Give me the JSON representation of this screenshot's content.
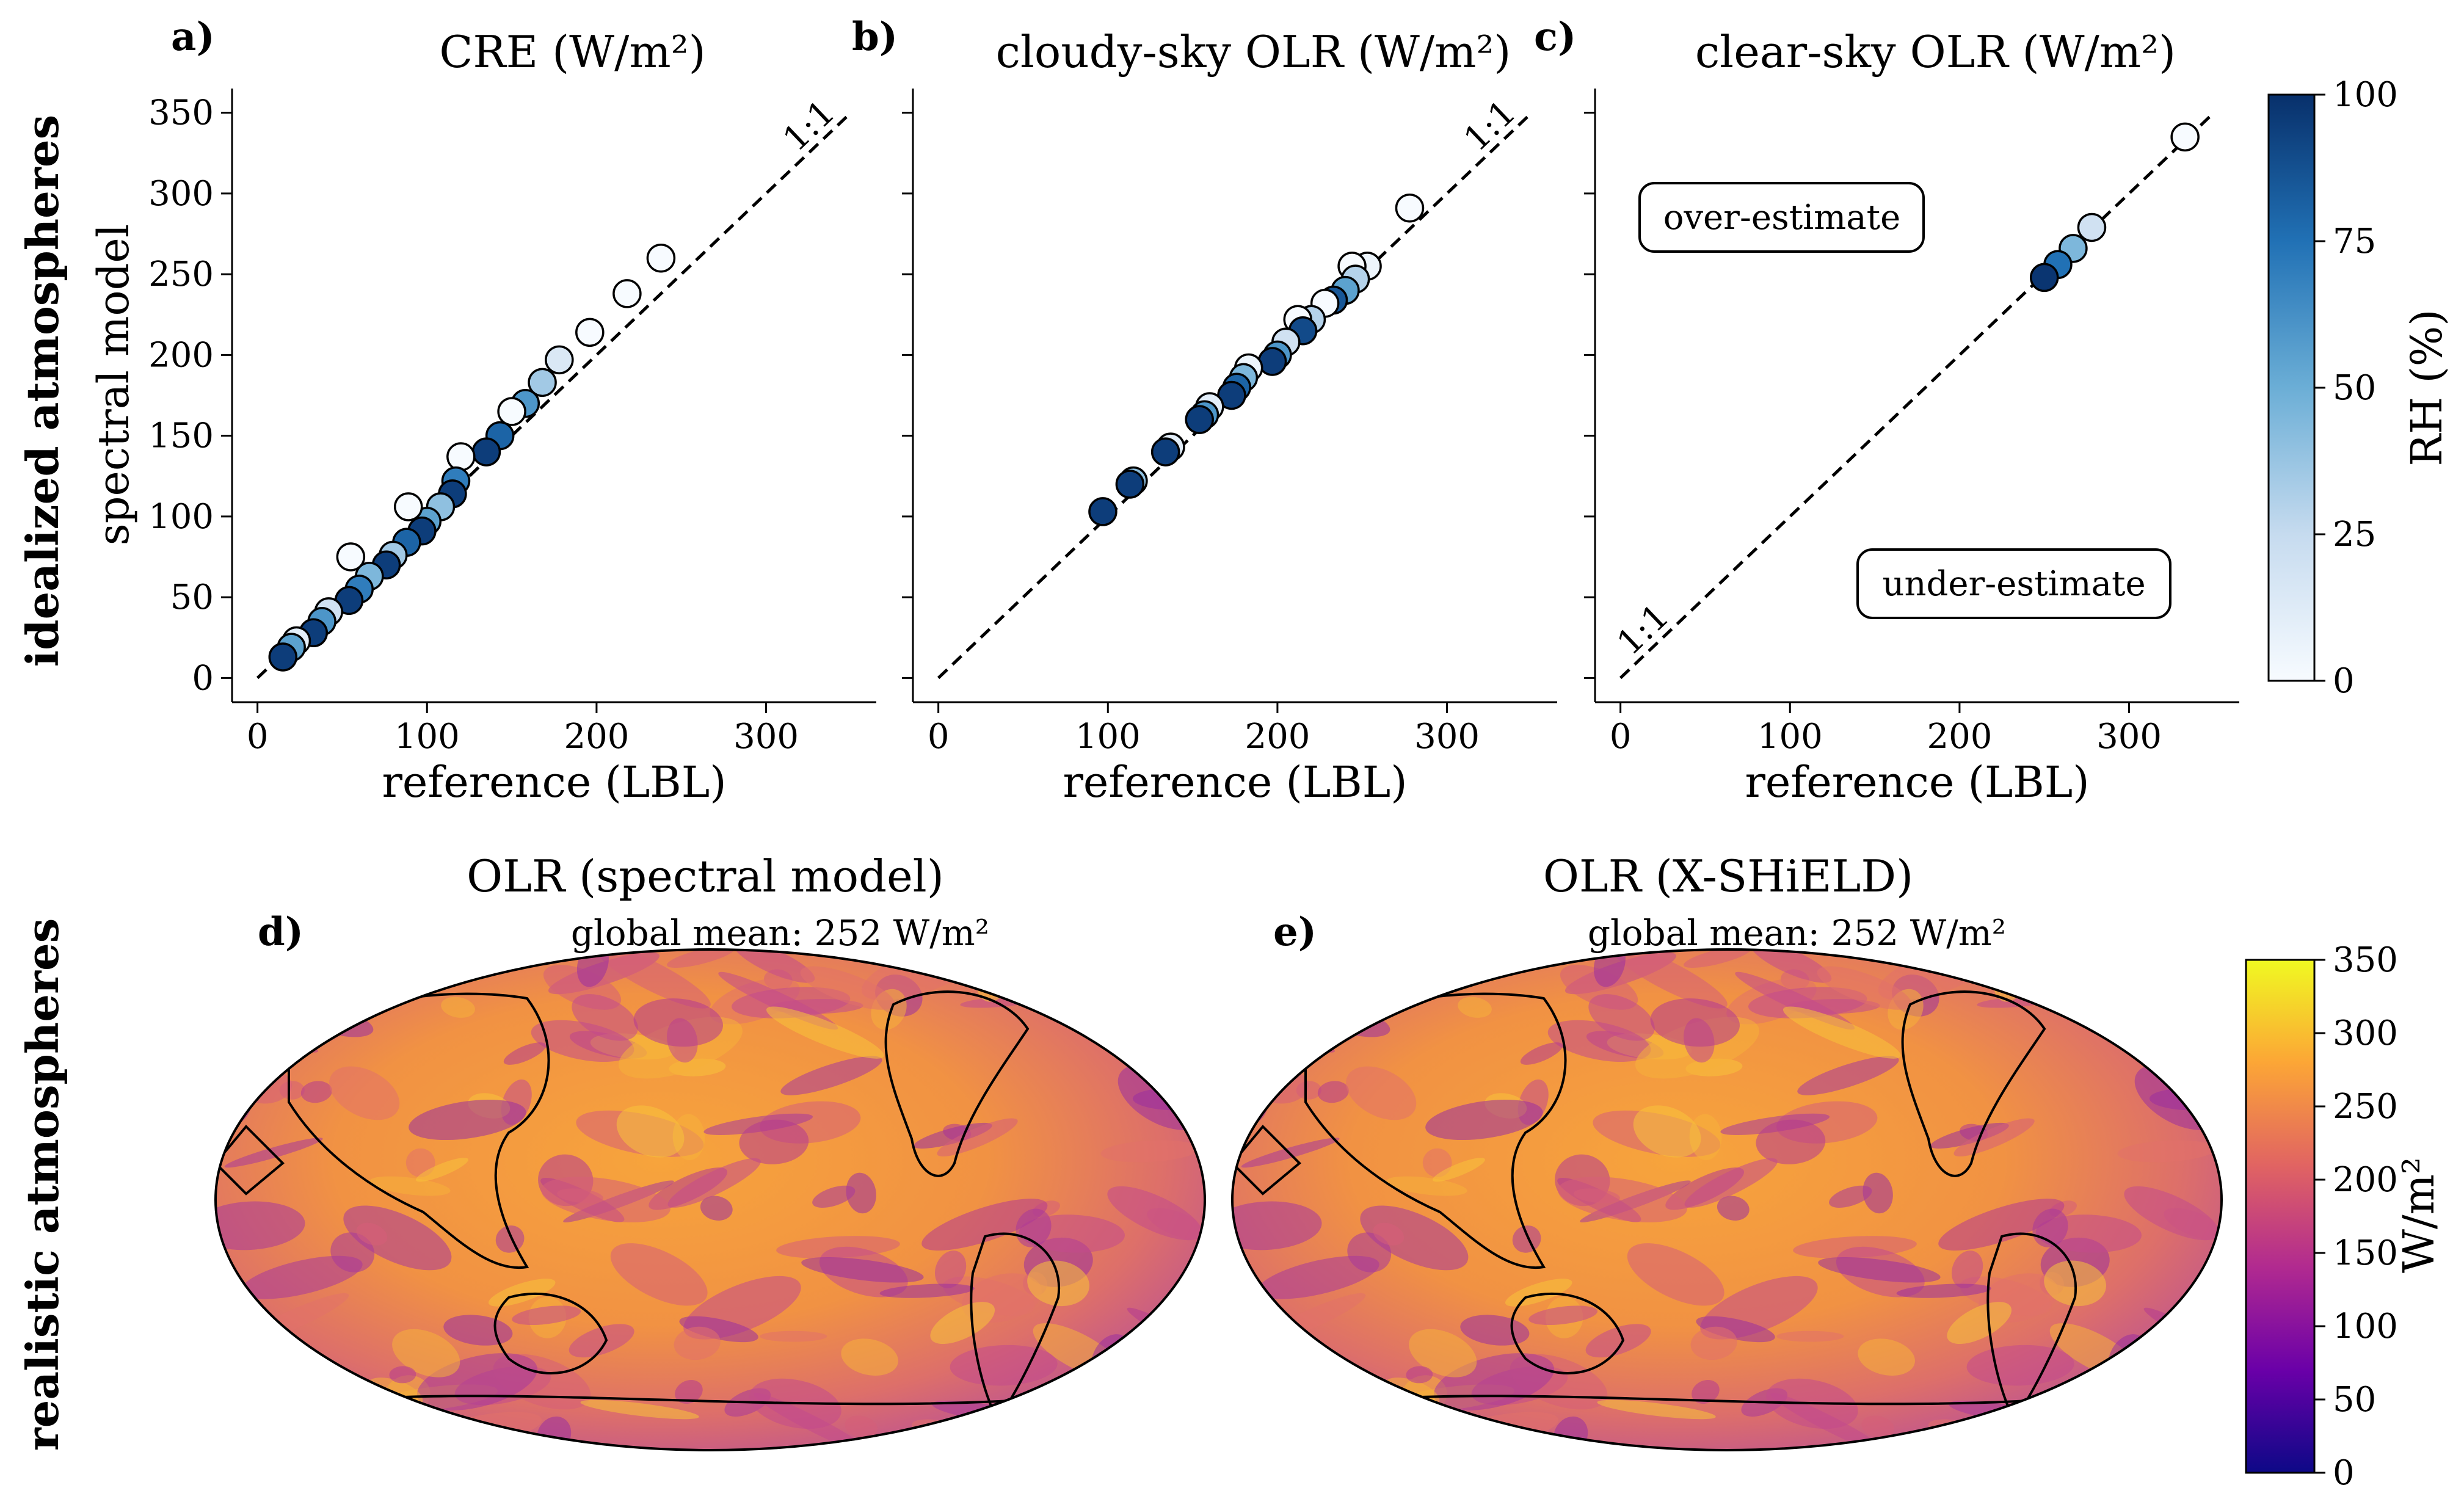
{
  "row_labels": {
    "top": "idealized atmospheres",
    "bottom": "realistic atmospheres"
  },
  "chart_data": [
    {
      "type": "scatter",
      "panel": "a)",
      "title": "CRE (W/m²)",
      "xlabel": "reference (LBL)",
      "ylabel": "spectral model",
      "xlim": [
        -15,
        365
      ],
      "ylim": [
        -15,
        365
      ],
      "xticks": [
        0,
        100,
        200,
        300
      ],
      "yticks": [
        0,
        50,
        100,
        150,
        200,
        250,
        300,
        350
      ],
      "one_to_one_label": "1:1",
      "color_by": "RH (%)",
      "points": [
        {
          "x": 238,
          "y": 260,
          "rh": 0
        },
        {
          "x": 218,
          "y": 238,
          "rh": 0
        },
        {
          "x": 196,
          "y": 214,
          "rh": 0
        },
        {
          "x": 178,
          "y": 197,
          "rh": 15
        },
        {
          "x": 168,
          "y": 183,
          "rh": 35
        },
        {
          "x": 158,
          "y": 170,
          "rh": 60
        },
        {
          "x": 150,
          "y": 165,
          "rh": 0
        },
        {
          "x": 143,
          "y": 150,
          "rh": 80
        },
        {
          "x": 135,
          "y": 140,
          "rh": 95
        },
        {
          "x": 120,
          "y": 137,
          "rh": 0
        },
        {
          "x": 117,
          "y": 122,
          "rh": 70
        },
        {
          "x": 115,
          "y": 114,
          "rh": 95
        },
        {
          "x": 108,
          "y": 106,
          "rh": 40
        },
        {
          "x": 100,
          "y": 97,
          "rh": 55
        },
        {
          "x": 97,
          "y": 91,
          "rh": 95
        },
        {
          "x": 89,
          "y": 106,
          "rh": 0
        },
        {
          "x": 88,
          "y": 84,
          "rh": 80
        },
        {
          "x": 80,
          "y": 76,
          "rh": 35
        },
        {
          "x": 76,
          "y": 70,
          "rh": 95
        },
        {
          "x": 66,
          "y": 63,
          "rh": 45
        },
        {
          "x": 60,
          "y": 55,
          "rh": 70
        },
        {
          "x": 55,
          "y": 75,
          "rh": 0
        },
        {
          "x": 54,
          "y": 48,
          "rh": 95
        },
        {
          "x": 42,
          "y": 41,
          "rh": 20
        },
        {
          "x": 38,
          "y": 35,
          "rh": 60
        },
        {
          "x": 33,
          "y": 28,
          "rh": 95
        },
        {
          "x": 23,
          "y": 23,
          "rh": 10
        },
        {
          "x": 20,
          "y": 19,
          "rh": 55
        },
        {
          "x": 15,
          "y": 13,
          "rh": 95
        }
      ]
    },
    {
      "type": "scatter",
      "panel": "b)",
      "title": "cloudy-sky OLR (W/m²)",
      "xlabel": "reference (LBL)",
      "ylabel": "",
      "xlim": [
        -15,
        365
      ],
      "ylim": [
        -15,
        365
      ],
      "xticks": [
        0,
        100,
        200,
        300
      ],
      "yticks": [
        0,
        50,
        100,
        150,
        200,
        250,
        300,
        350
      ],
      "one_to_one_label": "1:1",
      "color_by": "RH (%)",
      "points": [
        {
          "x": 278,
          "y": 291,
          "rh": 0
        },
        {
          "x": 253,
          "y": 255,
          "rh": 5
        },
        {
          "x": 244,
          "y": 255,
          "rh": 0
        },
        {
          "x": 246,
          "y": 247,
          "rh": 30
        },
        {
          "x": 240,
          "y": 240,
          "rh": 55
        },
        {
          "x": 233,
          "y": 234,
          "rh": 85
        },
        {
          "x": 228,
          "y": 232,
          "rh": 0
        },
        {
          "x": 220,
          "y": 222,
          "rh": 30
        },
        {
          "x": 212,
          "y": 222,
          "rh": 0
        },
        {
          "x": 215,
          "y": 215,
          "rh": 90
        },
        {
          "x": 205,
          "y": 208,
          "rh": 20
        },
        {
          "x": 200,
          "y": 200,
          "rh": 60
        },
        {
          "x": 197,
          "y": 196,
          "rh": 95
        },
        {
          "x": 183,
          "y": 192,
          "rh": 5
        },
        {
          "x": 180,
          "y": 186,
          "rh": 45
        },
        {
          "x": 176,
          "y": 180,
          "rh": 80
        },
        {
          "x": 173,
          "y": 175,
          "rh": 95
        },
        {
          "x": 160,
          "y": 168,
          "rh": 10
        },
        {
          "x": 157,
          "y": 163,
          "rh": 60
        },
        {
          "x": 154,
          "y": 160,
          "rh": 95
        },
        {
          "x": 137,
          "y": 143,
          "rh": 10
        },
        {
          "x": 134,
          "y": 140,
          "rh": 95
        },
        {
          "x": 115,
          "y": 122,
          "rh": 40
        },
        {
          "x": 113,
          "y": 120,
          "rh": 95
        },
        {
          "x": 97,
          "y": 103,
          "rh": 95
        }
      ]
    },
    {
      "type": "scatter",
      "panel": "c)",
      "title": "clear-sky OLR (W/m²)",
      "xlabel": "reference (LBL)",
      "ylabel": "",
      "xlim": [
        -15,
        365
      ],
      "ylim": [
        -15,
        365
      ],
      "xticks": [
        0,
        100,
        200,
        300
      ],
      "yticks": [
        0,
        50,
        100,
        150,
        200,
        250,
        300,
        350
      ],
      "one_to_one_label": "1:1",
      "annotations": {
        "over": "over-estimate",
        "under": "under-estimate"
      },
      "color_by": "RH (%)",
      "points": [
        {
          "x": 333,
          "y": 335,
          "rh": 0
        },
        {
          "x": 278,
          "y": 279,
          "rh": 20
        },
        {
          "x": 267,
          "y": 266,
          "rh": 45
        },
        {
          "x": 258,
          "y": 256,
          "rh": 75
        },
        {
          "x": 250,
          "y": 248,
          "rh": 98
        }
      ]
    }
  ],
  "rh_colorbar": {
    "label": "RH (%)",
    "ticks": [
      0,
      25,
      50,
      75,
      100
    ],
    "range": [
      0,
      100
    ],
    "colors": [
      "#f7fbff",
      "#c6dbef",
      "#6baed6",
      "#2171b5",
      "#08306b"
    ]
  },
  "maps": [
    {
      "panel": "d)",
      "title": "OLR (spectral model)",
      "subtitle": "global mean: 252 W/m²"
    },
    {
      "panel": "e)",
      "title": "OLR (X-SHiELD)",
      "subtitle": "global mean: 252 W/m²"
    }
  ],
  "olr_colorbar": {
    "label": "W/m²",
    "ticks": [
      0,
      50,
      100,
      150,
      200,
      250,
      300,
      350
    ],
    "range": [
      0,
      350
    ],
    "colors": [
      "#0d0887",
      "#6a00a8",
      "#b12a90",
      "#e16462",
      "#fca636",
      "#f0f921"
    ]
  }
}
